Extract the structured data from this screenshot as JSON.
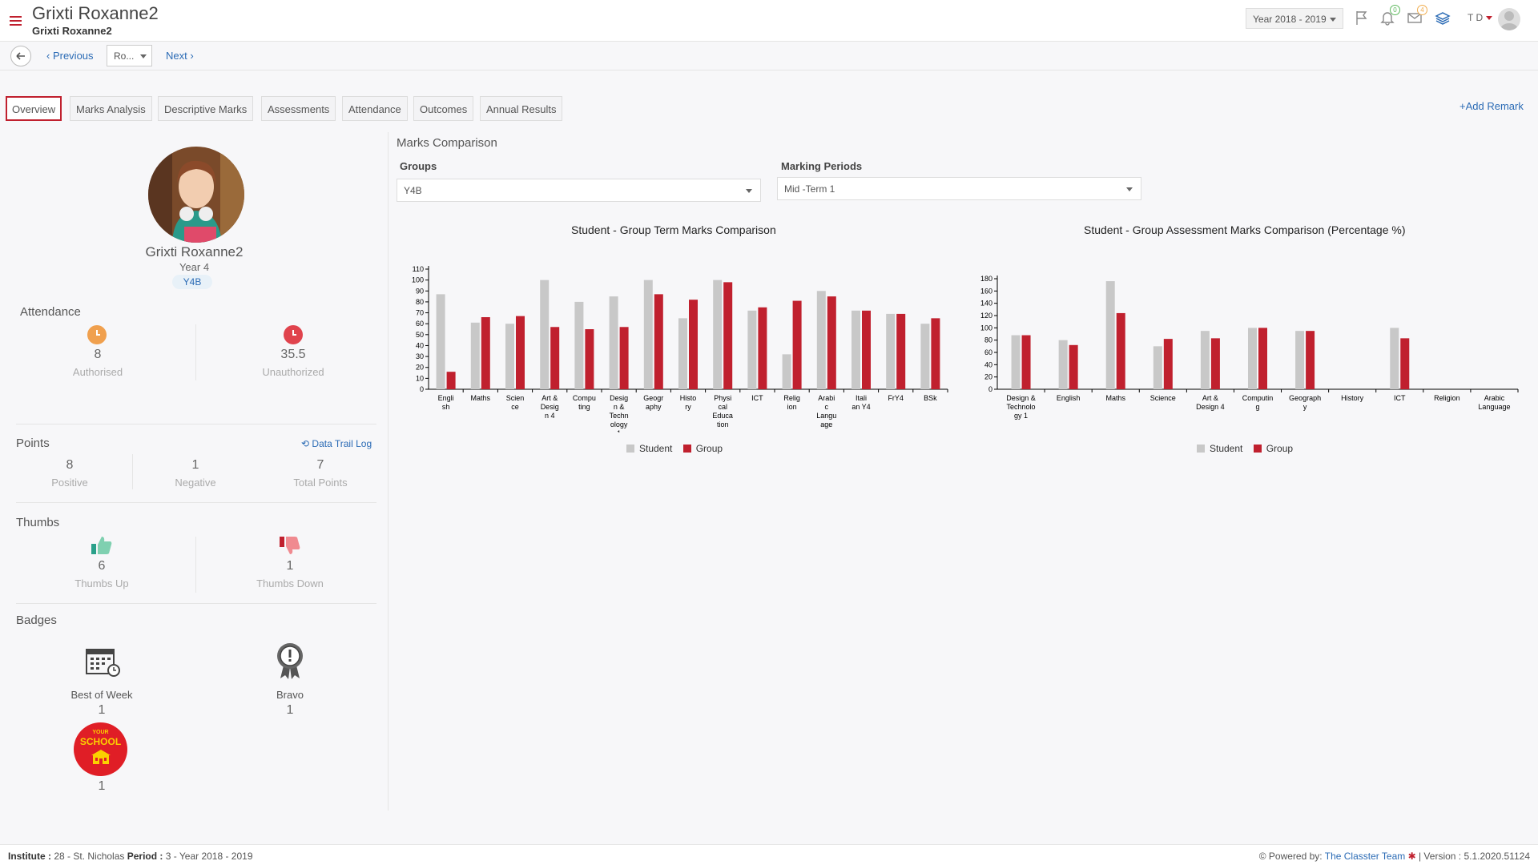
{
  "header": {
    "title": "Grixti Roxanne2",
    "subtitle": "Grixti Roxanne2",
    "year_select": "Year 2018 - 2019",
    "notifications_count": "0",
    "messages_count": "4",
    "user_initials": "T D"
  },
  "subnav": {
    "previous": "Previous",
    "student_select": "Ro...",
    "next": "Next"
  },
  "tabs": [
    {
      "label": "Overview"
    },
    {
      "label": "Marks Analysis"
    },
    {
      "label": "Descriptive Marks"
    },
    {
      "label": "Assessments"
    },
    {
      "label": "Attendance"
    },
    {
      "label": "Outcomes"
    },
    {
      "label": "Annual Results"
    }
  ],
  "add_remark": "+Add Remark",
  "profile": {
    "name": "Grixti Roxanne2",
    "year": "Year 4",
    "group": "Y4B"
  },
  "attendance": {
    "title": "Attendance",
    "authorised_value": "8",
    "authorised_label": "Authorised",
    "unauthorized_value": "35.5",
    "unauthorized_label": "Unauthorized"
  },
  "points": {
    "title": "Points",
    "data_trail": "Data Trail Log",
    "positive_value": "8",
    "positive_label": "Positive",
    "negative_value": "1",
    "negative_label": "Negative",
    "total_value": "7",
    "total_label": "Total Points"
  },
  "thumbs": {
    "title": "Thumbs",
    "up_value": "6",
    "up_label": "Thumbs Up",
    "down_value": "1",
    "down_label": "Thumbs Down"
  },
  "badges": {
    "title": "Badges",
    "items": [
      {
        "label": "Best of Week",
        "count": "1"
      },
      {
        "label": "Bravo",
        "count": "1"
      },
      {
        "label": "",
        "count": "1",
        "logo_text_top": "YOUR",
        "logo_text": "SCHOOL"
      }
    ]
  },
  "marks_comparison": {
    "title": "Marks Comparison",
    "groups_label": "Groups",
    "groups_value": "Y4B",
    "periods_label": "Marking Periods",
    "periods_value": "Mid -Term 1"
  },
  "colors": {
    "student": "#c8c8c8",
    "group": "#c0202e",
    "accent": "#c0202e",
    "link": "#2b6bb5"
  },
  "chart_data": [
    {
      "type": "bar",
      "title": "Student - Group Term Marks Comparison",
      "categories": [
        "English",
        "Maths",
        "Science",
        "Art & Design 4",
        "Computing",
        "Design & Technology 1",
        "Geography",
        "History",
        "Physical Education",
        "ICT",
        "Religion",
        "Arabic Language",
        "Italian Y4",
        "FrY4",
        "BSk"
      ],
      "category_labels": [
        [
          "Engli",
          "sh"
        ],
        [
          "Maths"
        ],
        [
          "Scien",
          "ce"
        ],
        [
          "Art &",
          "Desig",
          "n 4"
        ],
        [
          "Compu",
          "ting"
        ],
        [
          "Desig",
          "n &",
          "Techn",
          "ology",
          "1"
        ],
        [
          "Geogr",
          "aphy"
        ],
        [
          "Histo",
          "ry"
        ],
        [
          "Physi",
          "cal",
          "Educa",
          "tion"
        ],
        [
          "ICT"
        ],
        [
          "Relig",
          "ion"
        ],
        [
          "Arabi",
          "c",
          "Langu",
          "age"
        ],
        [
          "Itali",
          "an Y4"
        ],
        [
          "FrY4"
        ],
        [
          "BSk"
        ]
      ],
      "series": [
        {
          "name": "Student",
          "values": [
            87,
            61,
            60,
            100,
            80,
            85,
            100,
            65,
            100,
            72,
            32,
            90,
            72,
            69,
            60
          ]
        },
        {
          "name": "Group",
          "values": [
            16,
            66,
            67,
            57,
            55,
            57,
            87,
            82,
            98,
            75,
            81,
            85,
            72,
            69,
            65
          ]
        }
      ],
      "ylim": [
        0,
        110
      ],
      "yticks": [
        0,
        10,
        20,
        30,
        40,
        50,
        60,
        70,
        80,
        90,
        100,
        110
      ],
      "legend": "bottom"
    },
    {
      "type": "bar",
      "title": "Student - Group Assessment Marks Comparison (Percentage %)",
      "categories": [
        "Design & Technology 1",
        "English",
        "Maths",
        "Science",
        "Art & Design 4",
        "Computing",
        "Geography",
        "History",
        "ICT",
        "Religion",
        "Arabic Language"
      ],
      "category_labels": [
        [
          "Design &",
          "Technolo",
          "gy 1"
        ],
        [
          "English"
        ],
        [
          "Maths"
        ],
        [
          "Science"
        ],
        [
          "Art &",
          "Design 4"
        ],
        [
          "Computin",
          "g"
        ],
        [
          "Geograph",
          "y"
        ],
        [
          "History"
        ],
        [
          "ICT"
        ],
        [
          "Religion"
        ],
        [
          "Arabic",
          "Language"
        ]
      ],
      "series": [
        {
          "name": "Student",
          "values": [
            88,
            80,
            176,
            70,
            95,
            100,
            95,
            0,
            100,
            0,
            0
          ]
        },
        {
          "name": "Group",
          "values": [
            88,
            72,
            124,
            82,
            83,
            100,
            95,
            0,
            83,
            0,
            0
          ]
        }
      ],
      "ylim": [
        0,
        180
      ],
      "yticks": [
        0,
        20,
        40,
        60,
        80,
        100,
        120,
        140,
        160,
        180
      ],
      "legend": "bottom"
    }
  ],
  "footer": {
    "institute_label": "Institute :",
    "institute_value": "28 - St. Nicholas",
    "period_label": "Period :",
    "period_value": "3 - Year 2018 - 2019",
    "powered_by": "Powered by:",
    "team": "The Classter Team",
    "version": "| Version : 5.1.2020.51124"
  }
}
